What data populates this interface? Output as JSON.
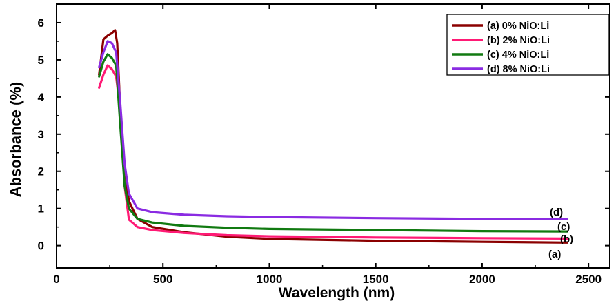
{
  "chart_data": {
    "type": "line",
    "xlabel": "Wavelength (nm)",
    "ylabel": "Absorbance (%)",
    "xlim": [
      0,
      2600
    ],
    "ylim": [
      -0.6,
      6.5
    ],
    "xticks": [
      0,
      500,
      1000,
      1500,
      2000,
      2500
    ],
    "yticks": [
      0,
      1,
      2,
      3,
      4,
      5,
      6
    ],
    "grid": false,
    "legend_position": "top-right",
    "series": [
      {
        "name": "(a) 0% NiO:Li",
        "label": "(a)",
        "color": "#8b0000",
        "x": [
          200,
          220,
          240,
          260,
          275,
          285,
          300,
          320,
          340,
          380,
          450,
          600,
          800,
          1000,
          1500,
          2000,
          2400
        ],
        "y": [
          4.6,
          5.55,
          5.65,
          5.72,
          5.8,
          5.45,
          3.6,
          2.0,
          1.2,
          0.72,
          0.5,
          0.36,
          0.24,
          0.18,
          0.13,
          0.1,
          0.08
        ]
      },
      {
        "name": "(b) 2% NiO:Li",
        "label": "(b)",
        "color": "#ff1a75",
        "x": [
          200,
          220,
          240,
          260,
          280,
          300,
          310,
          320,
          340,
          380,
          450,
          600,
          800,
          1000,
          1500,
          2000,
          2400
        ],
        "y": [
          4.25,
          4.6,
          4.85,
          4.75,
          4.55,
          3.6,
          2.6,
          1.6,
          0.7,
          0.5,
          0.42,
          0.34,
          0.28,
          0.25,
          0.22,
          0.2,
          0.19
        ]
      },
      {
        "name": "(c) 4% NiO:Li",
        "label": "(c)",
        "color": "#117a11",
        "x": [
          200,
          220,
          240,
          260,
          280,
          300,
          320,
          340,
          380,
          450,
          600,
          800,
          1000,
          1500,
          2000,
          2400
        ],
        "y": [
          4.55,
          4.95,
          5.15,
          5.05,
          4.85,
          3.2,
          1.6,
          1.0,
          0.72,
          0.62,
          0.53,
          0.48,
          0.45,
          0.42,
          0.39,
          0.38
        ]
      },
      {
        "name": "(d) 8% NiO:Li",
        "label": "(d)",
        "color": "#8a2be2",
        "x": [
          200,
          220,
          240,
          260,
          280,
          300,
          320,
          340,
          380,
          450,
          600,
          800,
          1000,
          1500,
          2000,
          2400
        ],
        "y": [
          4.8,
          5.2,
          5.5,
          5.45,
          5.2,
          3.8,
          2.2,
          1.4,
          1.0,
          0.9,
          0.83,
          0.79,
          0.77,
          0.74,
          0.72,
          0.71
        ]
      }
    ]
  }
}
